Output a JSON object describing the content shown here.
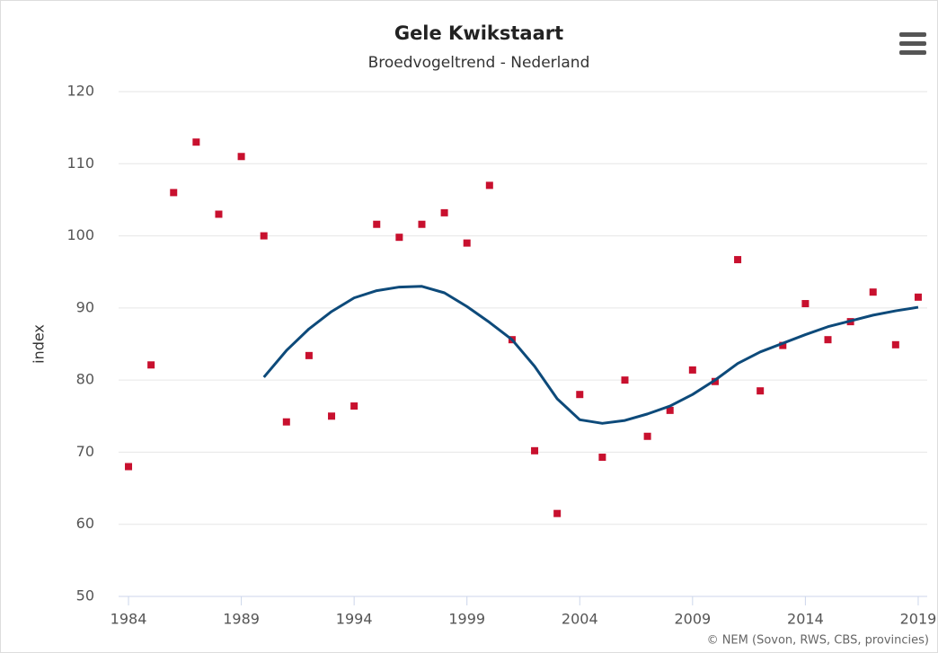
{
  "chart_data": {
    "type": "scatter",
    "title": "Gele Kwikstaart",
    "subtitle": "Broedvogeltrend - Nederland",
    "y_label": "index",
    "credit": "© NEM (Sovon, RWS, CBS, provincies)",
    "x": [
      1984,
      1985,
      1986,
      1987,
      1988,
      1989,
      1990,
      1991,
      1992,
      1993,
      1994,
      1995,
      1996,
      1997,
      1998,
      1999,
      2000,
      2001,
      2002,
      2003,
      2004,
      2005,
      2006,
      2007,
      2008,
      2009,
      2010,
      2011,
      2012,
      2013,
      2014,
      2015,
      2016,
      2017,
      2018,
      2019
    ],
    "series": [
      {
        "mode": "markers",
        "color": "#c8102e",
        "values": [
          68,
          82.1,
          106,
          113,
          103,
          111,
          100,
          74.2,
          83.4,
          75,
          76.4,
          101.6,
          99.8,
          101.6,
          103.2,
          99,
          107,
          85.6,
          70.2,
          61.5,
          78,
          69.3,
          80,
          72.2,
          75.8,
          81.4,
          79.8,
          96.7,
          78.5,
          84.8,
          90.6,
          85.6,
          88.1,
          92.2,
          84.9,
          91.5
        ]
      },
      {
        "mode": "line",
        "color": "#0d4a7a",
        "values": [
          null,
          null,
          null,
          null,
          null,
          null,
          80.4,
          84.1,
          87.1,
          89.5,
          91.4,
          92.4,
          92.9,
          93,
          92.1,
          90.2,
          88,
          85.6,
          81.9,
          77.4,
          74.5,
          74,
          74.4,
          75.3,
          76.4,
          78,
          80,
          82.3,
          83.9,
          85.1,
          86.3,
          87.4,
          88.2,
          89,
          89.6,
          90.1
        ]
      }
    ],
    "xlim": [
      1983.8,
      2019.4
    ],
    "xticks": [
      1984,
      1989,
      1994,
      1999,
      2004,
      2009,
      2014,
      2019
    ],
    "ylim": [
      50,
      120
    ],
    "yticks": [
      50,
      60,
      70,
      80,
      90,
      100,
      110,
      120
    ],
    "grid": true
  }
}
